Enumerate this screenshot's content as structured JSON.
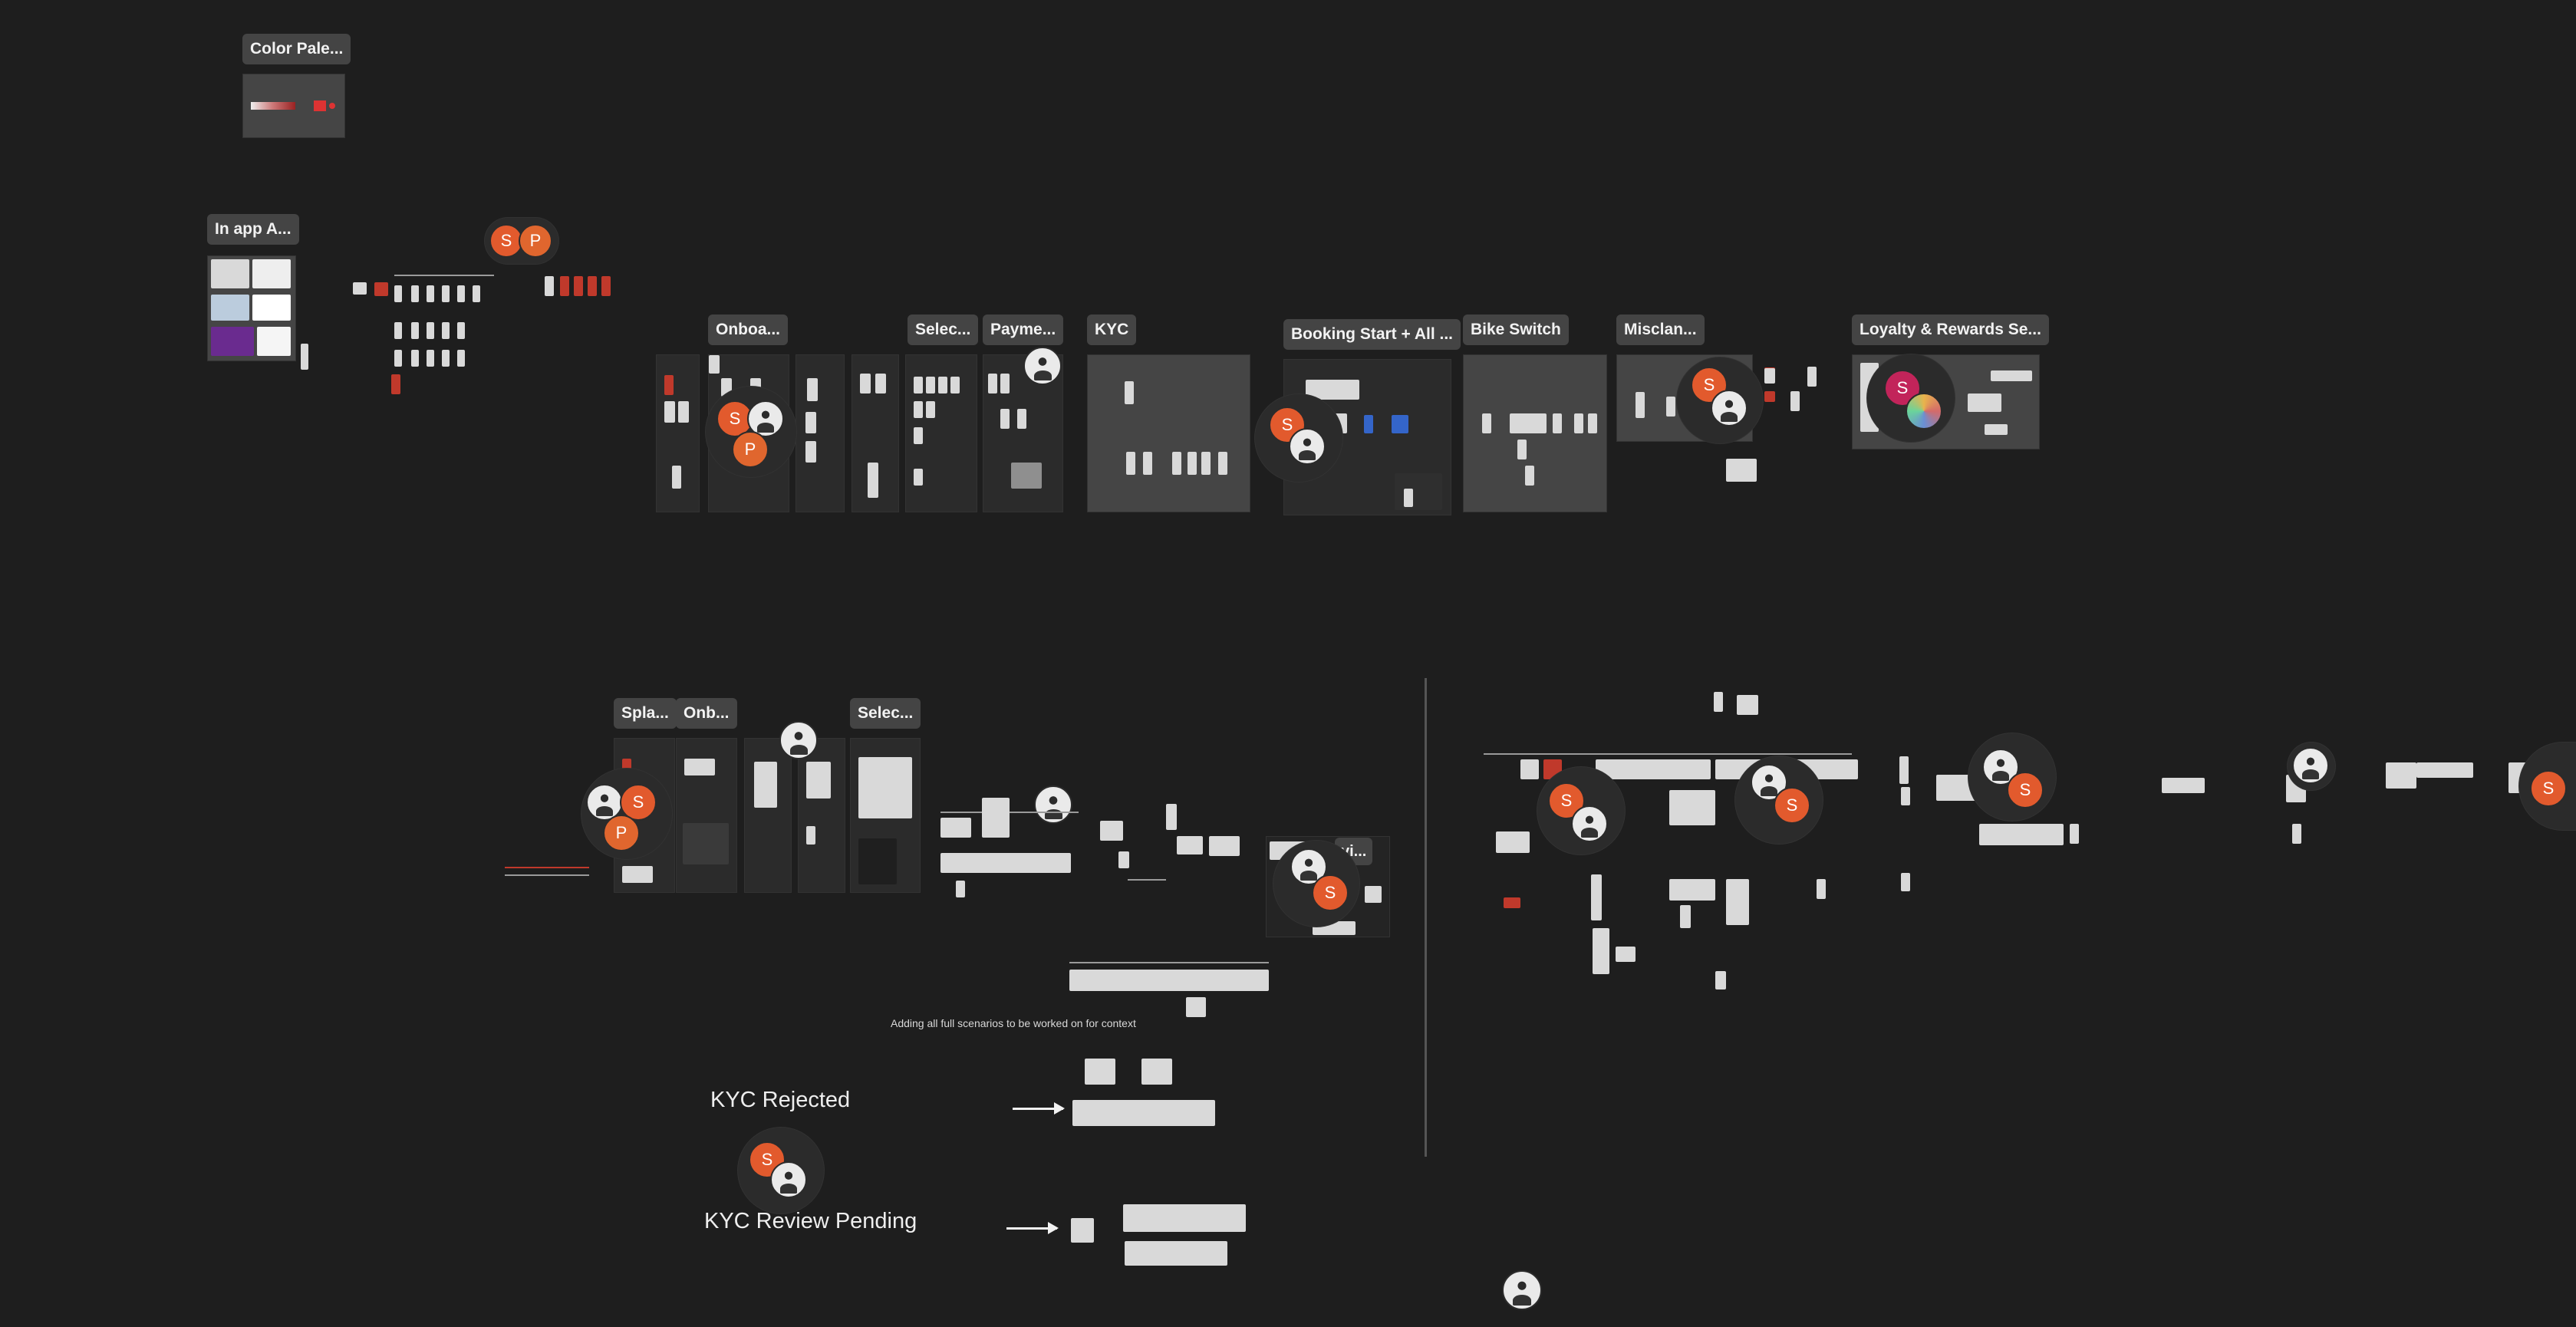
{
  "canvas": {
    "background": "#1e1e1e",
    "accent_user_s": "#e25a2d",
    "accent_user_p": "#e0662e"
  },
  "sections": {
    "color_palette": "Color Pale...",
    "in_app": "In app A...",
    "onboarding": "Onboa...",
    "select": "Selec...",
    "payment": "Payme...",
    "kyc": "KYC",
    "booking": "Booking Start + All ...",
    "bike_switch": "Bike Switch",
    "miscellaneous": "Misclan...",
    "loyalty": "Loyalty & Rewards Se...",
    "splash": "Spla...",
    "onboarding_2": "Onb...",
    "select_2": "Selec...",
    "partial_label": "vi..."
  },
  "annotations": {
    "context_note": "Adding all full scenarios to be worked on for context",
    "kyc_rejected": "KYC Rejected",
    "kyc_review_pending": "KYC Review Pending"
  },
  "avatars": {
    "s": "S",
    "p": "P"
  },
  "icons": [
    "user-avatar-s",
    "user-avatar-p",
    "user-photo-avatar",
    "arrow-right-icon"
  ]
}
